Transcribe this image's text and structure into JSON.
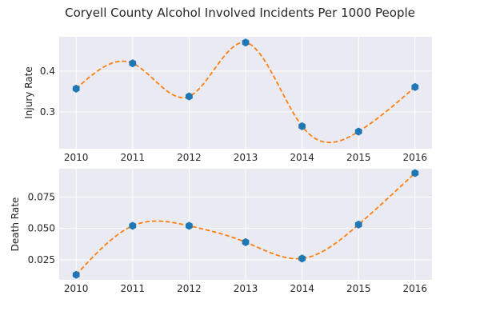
{
  "chart_data": [
    {
      "type": "scatter",
      "title": "Coryell County Alcohol Involved Incidents Per 1000 People",
      "xlabel": "",
      "ylabel": "Injury Rate",
      "x": [
        2010,
        2011,
        2012,
        2013,
        2014,
        2015,
        2016
      ],
      "x_ticks": [
        "2010",
        "2011",
        "2012",
        "2013",
        "2014",
        "2015",
        "2016"
      ],
      "y_ticks": [
        "0.3",
        "0.4"
      ],
      "y_tick_values": [
        0.3,
        0.4
      ],
      "xlim": [
        2009.7,
        2016.3
      ],
      "ylim": [
        0.21,
        0.484
      ],
      "grid": true,
      "series": [
        {
          "name": "",
          "values": [
            0.357,
            0.419,
            0.338,
            0.47,
            0.265,
            0.252,
            0.361
          ],
          "marker_color": "#1f77b4",
          "curve_color": "#ff7f0e",
          "curve": "smooth-dashed"
        }
      ]
    },
    {
      "type": "scatter",
      "title": "",
      "xlabel": "",
      "ylabel": "Death Rate",
      "x": [
        2010,
        2011,
        2012,
        2013,
        2014,
        2015,
        2016
      ],
      "x_ticks": [
        "2010",
        "2011",
        "2012",
        "2013",
        "2014",
        "2015",
        "2016"
      ],
      "y_ticks": [
        "0.025",
        "0.050",
        "0.075"
      ],
      "y_tick_values": [
        0.025,
        0.05,
        0.075
      ],
      "xlim": [
        2009.7,
        2016.3
      ],
      "ylim": [
        0.009,
        0.0975
      ],
      "grid": true,
      "series": [
        {
          "name": "",
          "values": [
            0.013,
            0.052,
            0.052,
            0.039,
            0.026,
            0.053,
            0.094
          ],
          "marker_color": "#1f77b4",
          "curve_color": "#ff7f0e",
          "curve": "smooth-dashed"
        }
      ]
    }
  ],
  "colors": {
    "plot_background": "#eaeaf2",
    "grid": "#ffffff"
  }
}
